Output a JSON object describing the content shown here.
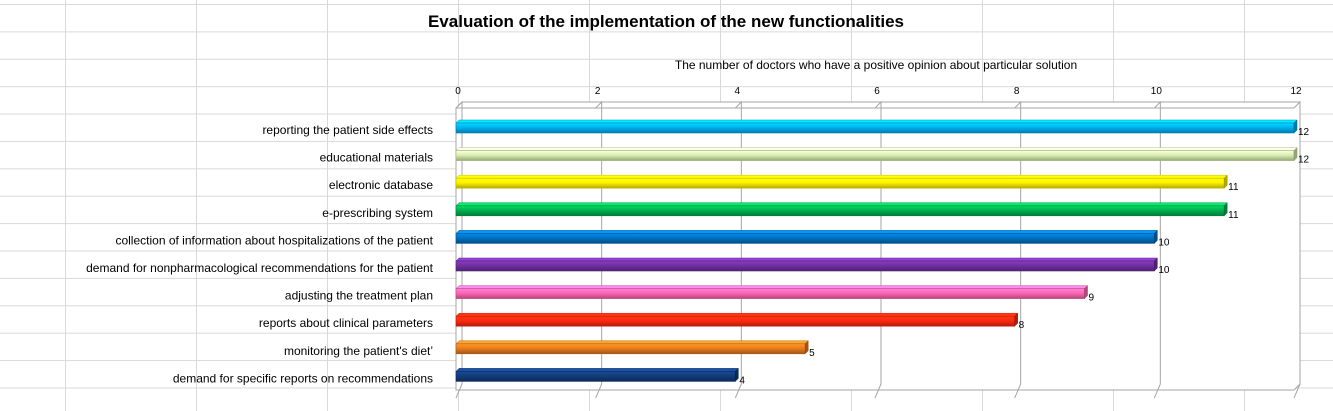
{
  "chart_data": {
    "type": "bar",
    "orientation": "horizontal",
    "title": "Evaluation of the implementation of the new functionalities",
    "xlabel": "The number of doctors who have a positive opinion about particular solution",
    "ylabel": "",
    "xlim": [
      0,
      12
    ],
    "ticks": [
      "0",
      "2",
      "4",
      "6",
      "8",
      "10",
      "12"
    ],
    "tick_values": [
      0,
      2,
      4,
      6,
      8,
      10,
      12
    ],
    "axis_position": "top",
    "grid": true,
    "legend": "none",
    "categories": [
      "reporting the patient side effects",
      "educational materials",
      "electronic database",
      "e-prescribing system",
      "collection of information about hospitalizations of the patient",
      "demand for nonpharmacological recommendations for the patient",
      "adjusting the treatment plan",
      "reports about clinical parameters",
      "monitoring the patient's diet’",
      "demand for specific reports on recommendations"
    ],
    "values": [
      12,
      12,
      11,
      11,
      10,
      10,
      9,
      8,
      5,
      4
    ],
    "data_labels": [
      "12",
      "12",
      "11",
      "11",
      "10",
      "10",
      "9",
      "8",
      "5",
      "4"
    ],
    "colors": [
      "#00B0F0",
      "#D8F0B0",
      "#FFF200",
      "#00B050",
      "#0070C0",
      "#7030A0",
      "#FF66B2",
      "#FF2A10",
      "#E87B1E",
      "#123C7A"
    ]
  }
}
